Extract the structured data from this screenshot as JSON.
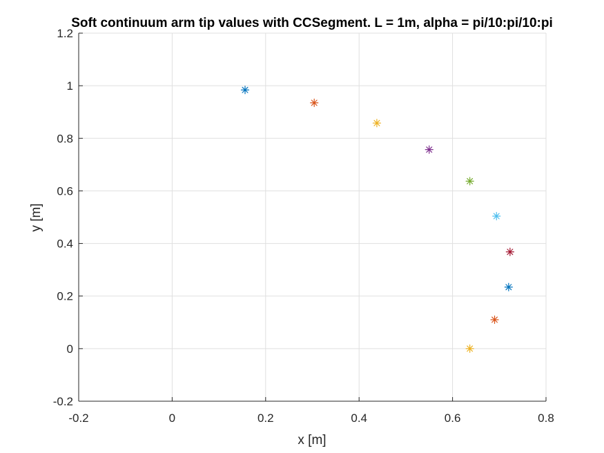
{
  "chart_data": {
    "type": "scatter",
    "title": "Soft continuum arm tip values with CCSegment. L = 1m, alpha = pi/10:pi/10:pi",
    "xlabel": "x [m]",
    "ylabel": "y [m]",
    "xlim": [
      -0.2,
      0.8
    ],
    "ylim": [
      -0.2,
      1.2
    ],
    "xticks": [
      -0.2,
      0,
      0.2,
      0.4,
      0.6,
      0.8
    ],
    "yticks": [
      -0.2,
      0,
      0.2,
      0.4,
      0.6,
      0.8,
      1,
      1.2
    ],
    "xtick_labels": [
      "-0.2",
      "0",
      "0.2",
      "0.4",
      "0.6",
      "0.8"
    ],
    "ytick_labels": [
      "-0.2",
      "0",
      "0.2",
      "0.4",
      "0.6",
      "0.8",
      "1",
      "1.2"
    ],
    "grid": true,
    "marker": "asterisk",
    "points": [
      {
        "x": 0.156,
        "y": 0.984,
        "color": "#0072BD"
      },
      {
        "x": 0.304,
        "y": 0.935,
        "color": "#D95319"
      },
      {
        "x": 0.438,
        "y": 0.858,
        "color": "#EDB120"
      },
      {
        "x": 0.55,
        "y": 0.757,
        "color": "#7E2F8E"
      },
      {
        "x": 0.637,
        "y": 0.637,
        "color": "#77AC30"
      },
      {
        "x": 0.694,
        "y": 0.504,
        "color": "#4DBEEE"
      },
      {
        "x": 0.723,
        "y": 0.368,
        "color": "#A2142F"
      },
      {
        "x": 0.72,
        "y": 0.234,
        "color": "#0072BD"
      },
      {
        "x": 0.69,
        "y": 0.11,
        "color": "#D95319"
      },
      {
        "x": 0.637,
        "y": 0.0,
        "color": "#EDB120"
      }
    ]
  }
}
